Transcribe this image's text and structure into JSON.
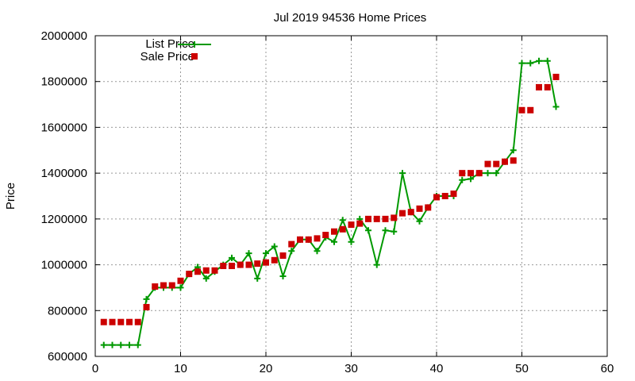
{
  "chart_data": {
    "type": "line",
    "title": "Jul 2019 94536 Home Prices",
    "xlabel": "",
    "ylabel": "Price",
    "xlim": [
      0,
      60
    ],
    "ylim": [
      600000,
      2000000
    ],
    "xticks": [
      0,
      10,
      20,
      30,
      40,
      50,
      60
    ],
    "yticks": [
      600000,
      800000,
      1000000,
      1200000,
      1400000,
      1600000,
      1800000,
      2000000
    ],
    "grid": true,
    "legend_position": "top-left",
    "series": [
      {
        "name": "List Price",
        "style": "line-plus",
        "color": "#009900",
        "x": [
          1,
          2,
          3,
          4,
          5,
          6,
          7,
          8,
          9,
          10,
          11,
          12,
          13,
          14,
          15,
          16,
          17,
          18,
          19,
          20,
          21,
          22,
          23,
          24,
          25,
          26,
          27,
          28,
          29,
          30,
          31,
          32,
          33,
          34,
          35,
          36,
          37,
          38,
          39,
          40,
          41,
          42,
          43,
          44,
          45,
          46,
          47,
          48,
          49,
          50,
          51,
          52,
          53,
          54
        ],
        "y": [
          650000,
          650000,
          650000,
          650000,
          650000,
          850000,
          900000,
          900000,
          900000,
          900000,
          960000,
          990000,
          940000,
          970000,
          1000000,
          1030000,
          1000000,
          1050000,
          940000,
          1050000,
          1080000,
          950000,
          1060000,
          1110000,
          1110000,
          1060000,
          1120000,
          1100000,
          1195000,
          1100000,
          1200000,
          1150000,
          1000000,
          1150000,
          1145000,
          1400000,
          1230000,
          1190000,
          1250000,
          1300000,
          1300000,
          1300000,
          1370000,
          1375000,
          1400000,
          1400000,
          1400000,
          1450000,
          1500000,
          1880000,
          1880000,
          1890000,
          1890000,
          1690000
        ]
      },
      {
        "name": "Sale Price",
        "style": "square",
        "color": "#cc0000",
        "x": [
          1,
          2,
          3,
          4,
          5,
          6,
          7,
          8,
          9,
          10,
          11,
          12,
          13,
          14,
          15,
          16,
          17,
          18,
          19,
          20,
          21,
          22,
          23,
          24,
          25,
          26,
          27,
          28,
          29,
          30,
          31,
          32,
          33,
          34,
          35,
          36,
          37,
          38,
          39,
          40,
          41,
          42,
          43,
          44,
          45,
          46,
          47,
          48,
          49,
          50,
          51,
          52,
          53,
          54
        ],
        "y": [
          750000,
          750000,
          750000,
          750000,
          750000,
          815000,
          905000,
          910000,
          910000,
          930000,
          960000,
          970000,
          975000,
          975000,
          995000,
          995000,
          1000000,
          1000000,
          1005000,
          1010000,
          1020000,
          1040000,
          1090000,
          1110000,
          1110000,
          1115000,
          1130000,
          1145000,
          1155000,
          1175000,
          1180000,
          1200000,
          1200000,
          1200000,
          1205000,
          1225000,
          1230000,
          1245000,
          1250000,
          1295000,
          1300000,
          1310000,
          1400000,
          1400000,
          1400000,
          1440000,
          1440000,
          1450000,
          1455000,
          1675000,
          1675000,
          1775000,
          1775000,
          1820000
        ]
      }
    ]
  }
}
